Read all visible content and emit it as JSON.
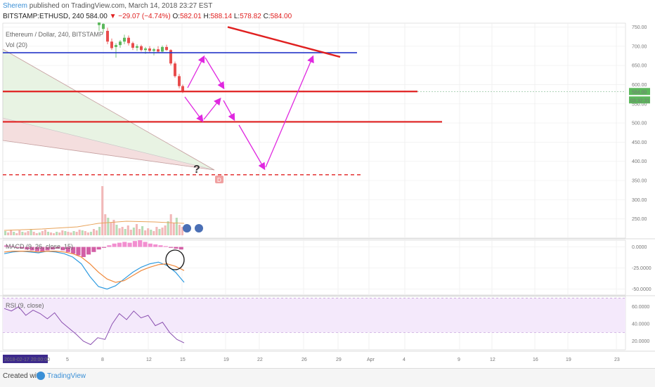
{
  "header": {
    "author": "Sherem",
    "published": " published on TradingView.com, March 14, 2018 23:27 EST",
    "symbol": "BITSTAMP:ETHUSD, 240",
    "last": "584.00",
    "change": "▼ −29.07 (−4.74%)",
    "o_label": "O:",
    "o": "582.01",
    "h_label": "H:",
    "h": "588.14",
    "l_label": "L:",
    "l": "578.82",
    "c_label": "C:",
    "c": "584.00"
  },
  "legends": {
    "main": "Ethereum / Dollar, 240, BITSTAMP",
    "vol": "Vol (20)",
    "macd": "MACD (9, 26, close, 15)",
    "rsi": "RSI (9, close)"
  },
  "footer": {
    "created": "Created with",
    "brand": "TradingView"
  },
  "chart_data": [
    {
      "type": "line",
      "panel": "price",
      "title": "Ethereum / Dollar, 240, BITSTAMP",
      "y_ticks": [
        "750.00",
        "700.00",
        "650.00",
        "600.00",
        "550.00",
        "500.00",
        "450.00",
        "400.00",
        "350.00",
        "300.00",
        "250.00"
      ],
      "ylim": [
        200,
        760
      ],
      "last_price_label": "584.00",
      "countdown_label": "03:32:31",
      "series": [
        {
          "values": [
            770,
            740,
            730,
            705,
            690,
            700,
            715,
            720,
            705,
            695,
            700,
            690,
            680,
            650,
            620,
            600,
            584
          ]
        }
      ],
      "levels": {
        "blue_horizontal": 683,
        "red_horizontal_1": 582,
        "red_horizontal_2": 503,
        "red_dashed": 365,
        "red_trendline_start": 750,
        "red_trendline_end": 672
      },
      "annotations": [
        "?",
        "D"
      ],
      "volume_panel": "Vol (20)",
      "grid": true
    },
    {
      "type": "line",
      "panel": "macd",
      "title": "MACD (9, 26, close, 15)",
      "y_ticks": [
        "0.0000",
        "-25.0000",
        "-50.0000"
      ],
      "ylim": [
        -57,
        8
      ],
      "series": [
        {
          "values": [
            -8,
            -6,
            -5,
            -6,
            -7,
            -5,
            -6,
            -8,
            -12,
            -20,
            -35,
            -47,
            -50,
            -46,
            -38,
            -30,
            -24,
            -20,
            -18,
            -22,
            -30,
            -42
          ]
        },
        {
          "values": [
            -6,
            -5,
            -5,
            -5,
            -6,
            -5,
            -5,
            -6,
            -8,
            -12,
            -20,
            -30,
            -38,
            -42,
            -40,
            -34,
            -28,
            -24,
            -21,
            -20,
            -23,
            -28
          ]
        }
      ],
      "grid": true
    },
    {
      "type": "line",
      "panel": "rsi",
      "title": "RSI (9, close)",
      "y_ticks": [
        "60.0000",
        "40.0000",
        "20.0000"
      ],
      "ylim": [
        10,
        72
      ],
      "bands": [
        30,
        70
      ],
      "series": [
        {
          "values": [
            58,
            55,
            60,
            50,
            56,
            52,
            46,
            53,
            42,
            35,
            28,
            20,
            16,
            24,
            22,
            40,
            52,
            45,
            55,
            47,
            50,
            38,
            42,
            30,
            22,
            18
          ]
        }
      ],
      "grid": true
    }
  ],
  "x_axis": {
    "current_label": "2018-02-17 20:00:00",
    "ticks": [
      "5",
      "8",
      "12",
      "15",
      "19",
      "22",
      "26",
      "29",
      "Apr",
      "4",
      "9",
      "12",
      "16",
      "19",
      "23"
    ]
  }
}
